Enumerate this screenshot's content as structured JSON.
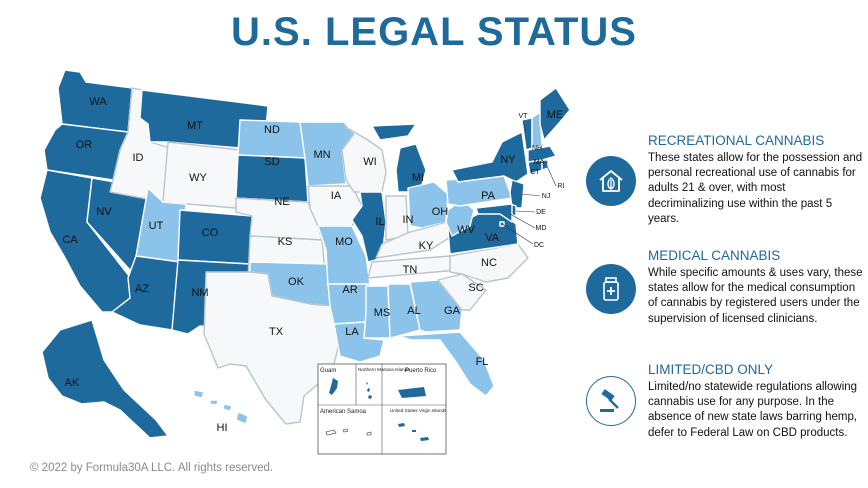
{
  "title": "U.S. LEGAL STATUS",
  "colors": {
    "recreational": "#1e6a9c",
    "medical": "#8cc3ea",
    "limited": "#f6f8fa",
    "accent": "#1e6a9c"
  },
  "legend": {
    "recreational": {
      "heading": "RECREATIONAL CANNABIS",
      "text": "These states allow for the possession and personal recreational use of cannabis for adults 21 & over, with most decriminalizing use within the past 5 years.",
      "icon": "house-leaf-icon"
    },
    "medical": {
      "heading": "MEDICAL CANNABIS",
      "text": "While specific amounts & uses vary, these states allow for the medical consumption of cannabis by registered users under the supervision of licensed clinicians.",
      "icon": "medicine-bottle-icon"
    },
    "limited": {
      "heading": "LIMITED/CBD ONLY",
      "text": "Limited/no statewide regulations allowing cannabis use for any purpose. In the absence of new state laws barring hemp, defer to Federal Law on CBD products.",
      "icon": "gavel-icon"
    }
  },
  "states": {
    "recreational": [
      "WA",
      "OR",
      "CA",
      "NV",
      "AZ",
      "MT",
      "CO",
      "NM",
      "SD",
      "IL",
      "MI",
      "NY",
      "VA",
      "NJ",
      "CT",
      "MA",
      "VT",
      "ME",
      "RI",
      "AK",
      "MD",
      "DE",
      "DC"
    ],
    "medical": [
      "ND",
      "MN",
      "UT",
      "OK",
      "MO",
      "AR",
      "LA",
      "MS",
      "AL",
      "GA",
      "FL",
      "OH",
      "PA",
      "WV",
      "NH",
      "HI"
    ],
    "limited": [
      "ID",
      "WY",
      "NE",
      "KS",
      "TX",
      "IA",
      "WI",
      "IN",
      "KY",
      "TN",
      "NC",
      "SC"
    ]
  },
  "map_labels": [
    "WA",
    "OR",
    "CA",
    "NV",
    "ID",
    "MT",
    "WY",
    "UT",
    "AZ",
    "CO",
    "NM",
    "ND",
    "SD",
    "NE",
    "KS",
    "OK",
    "TX",
    "MN",
    "IA",
    "MO",
    "AR",
    "LA",
    "WI",
    "IL",
    "MI",
    "IN",
    "OH",
    "KY",
    "TN",
    "MS",
    "AL",
    "GA",
    "FL",
    "SC",
    "NC",
    "VA",
    "WV",
    "PA",
    "NY",
    "ME",
    "VT",
    "NH",
    "MA",
    "CT",
    "RI",
    "NJ",
    "DE",
    "MD",
    "DC",
    "AK",
    "HI"
  ],
  "territories": {
    "guam": "Guam",
    "northern_mariana": "Northern Mariana Islands",
    "puerto_rico": "Puerto Rico",
    "american_samoa": "American Samoa",
    "virgin_islands": "United States Virgin Islands"
  },
  "footer": "© 2022 by Formula30A LLC. All rights reserved."
}
